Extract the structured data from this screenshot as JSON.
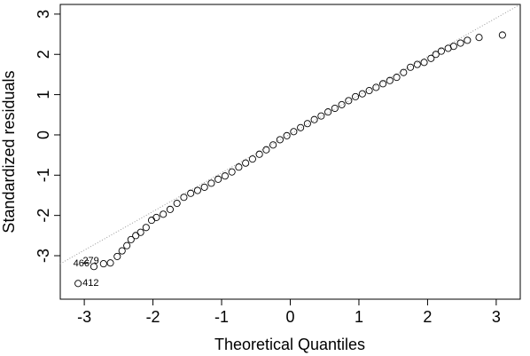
{
  "chart_data": {
    "type": "scatter",
    "xlabel": "Theoretical Quantiles",
    "ylabel": "Standardized residuals",
    "xlim": [
      -3.35,
      3.35
    ],
    "ylim": [
      -4.08,
      3.24
    ],
    "xticks": [
      -3,
      -2,
      -1,
      0,
      1,
      2,
      3
    ],
    "yticks": [
      -3,
      -2,
      -1,
      0,
      1,
      2,
      3
    ],
    "x": [
      -3.09,
      -2.86,
      -2.72,
      -2.62,
      -2.52,
      -2.45,
      -2.38,
      -2.32,
      -2.25,
      -2.18,
      -2.1,
      -2.02,
      -1.95,
      -1.85,
      -1.75,
      -1.65,
      -1.55,
      -1.45,
      -1.35,
      -1.25,
      -1.15,
      -1.05,
      -0.95,
      -0.85,
      -0.75,
      -0.65,
      -0.55,
      -0.45,
      -0.35,
      -0.25,
      -0.15,
      -0.05,
      0.05,
      0.15,
      0.25,
      0.35,
      0.45,
      0.55,
      0.65,
      0.75,
      0.85,
      0.95,
      1.05,
      1.15,
      1.25,
      1.35,
      1.45,
      1.55,
      1.65,
      1.75,
      1.85,
      1.95,
      2.05,
      2.12,
      2.2,
      2.3,
      2.38,
      2.48,
      2.58,
      2.75,
      3.09
    ],
    "values": [
      -3.69,
      -3.27,
      -3.2,
      -3.18,
      -3.02,
      -2.88,
      -2.75,
      -2.6,
      -2.5,
      -2.42,
      -2.3,
      -2.12,
      -2.05,
      -1.97,
      -1.85,
      -1.7,
      -1.55,
      -1.45,
      -1.38,
      -1.3,
      -1.2,
      -1.1,
      -1.02,
      -0.92,
      -0.8,
      -0.7,
      -0.6,
      -0.48,
      -0.37,
      -0.25,
      -0.12,
      -0.02,
      0.08,
      0.18,
      0.28,
      0.38,
      0.47,
      0.57,
      0.66,
      0.75,
      0.85,
      0.95,
      1.02,
      1.1,
      1.18,
      1.27,
      1.35,
      1.43,
      1.55,
      1.68,
      1.75,
      1.8,
      1.9,
      2.0,
      2.08,
      2.15,
      2.2,
      2.28,
      2.35,
      2.42,
      2.48
    ],
    "color": "#000000",
    "reference_line": {
      "x": [
        -3.35,
        3.35
      ],
      "y": [
        -3.2,
        3.24
      ],
      "color": "#999999"
    },
    "annotations": [
      {
        "text": "412",
        "x": -3.09,
        "y": -3.69
      },
      {
        "text": "466",
        "x": -2.86,
        "y": -3.27
      },
      {
        "text": "279",
        "x": -2.72,
        "y": -3.2
      }
    ]
  }
}
